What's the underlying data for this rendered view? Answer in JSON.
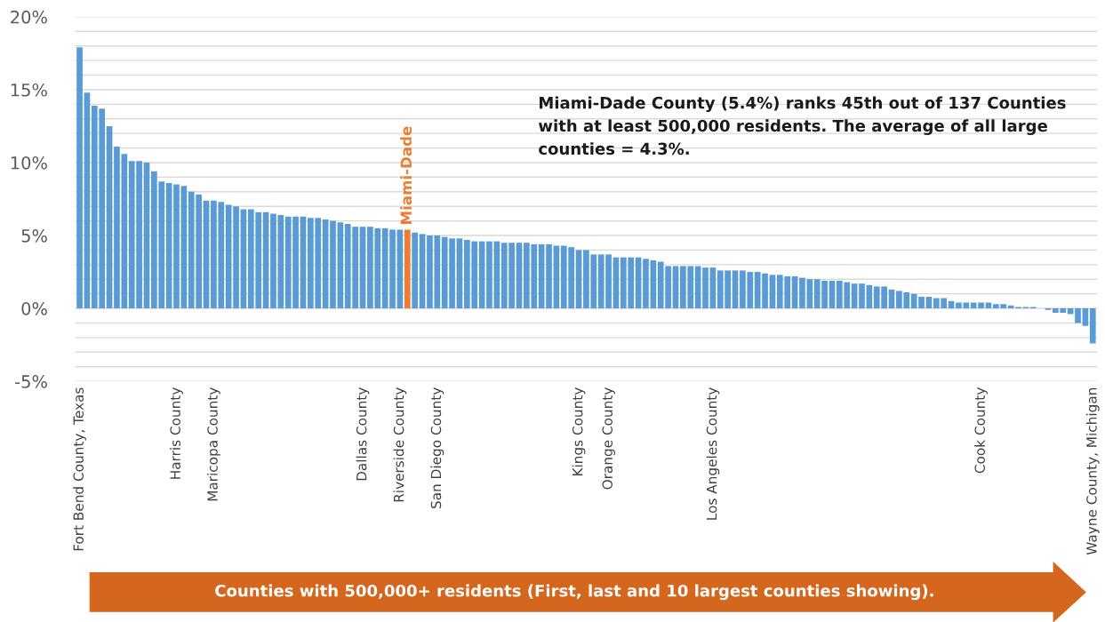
{
  "chart_data": {
    "type": "bar",
    "categories": [
      "Fort Bend County, Texas",
      null,
      null,
      null,
      null,
      null,
      null,
      null,
      null,
      null,
      null,
      null,
      null,
      "Harris County",
      null,
      null,
      null,
      null,
      "Maricopa County",
      null,
      null,
      null,
      null,
      null,
      null,
      null,
      null,
      null,
      null,
      null,
      null,
      null,
      null,
      null,
      null,
      null,
      null,
      null,
      "Dallas County",
      null,
      null,
      null,
      null,
      "Riverside County",
      "Miami-Dade",
      null,
      null,
      null,
      "San Diego County",
      null,
      null,
      null,
      null,
      null,
      null,
      null,
      null,
      null,
      null,
      null,
      null,
      null,
      null,
      null,
      null,
      null,
      null,
      "Kings County",
      null,
      null,
      null,
      "Orange County",
      null,
      null,
      null,
      null,
      null,
      null,
      null,
      null,
      null,
      null,
      null,
      null,
      null,
      "Los Angeles County",
      null,
      null,
      null,
      null,
      null,
      null,
      null,
      null,
      null,
      null,
      null,
      null,
      null,
      null,
      null,
      null,
      null,
      null,
      null,
      null,
      null,
      null,
      null,
      null,
      null,
      null,
      null,
      null,
      null,
      null,
      null,
      null,
      null,
      null,
      null,
      "Cook County",
      null,
      null,
      null,
      null,
      null,
      null,
      null,
      null,
      null,
      null,
      null,
      null,
      null,
      null,
      "Wayne County, Michigan"
    ],
    "values": [
      17.9,
      14.8,
      13.9,
      13.7,
      12.5,
      11.1,
      10.6,
      10.1,
      10.1,
      10.0,
      9.4,
      8.7,
      8.6,
      8.5,
      8.4,
      8.0,
      7.8,
      7.4,
      7.4,
      7.3,
      7.1,
      7.0,
      6.8,
      6.8,
      6.6,
      6.6,
      6.5,
      6.4,
      6.3,
      6.3,
      6.3,
      6.2,
      6.2,
      6.1,
      6.0,
      5.9,
      5.8,
      5.6,
      5.6,
      5.6,
      5.5,
      5.5,
      5.4,
      5.4,
      5.4,
      5.2,
      5.1,
      5.0,
      5.0,
      4.9,
      4.8,
      4.8,
      4.7,
      4.6,
      4.6,
      4.6,
      4.6,
      4.5,
      4.5,
      4.5,
      4.5,
      4.4,
      4.4,
      4.4,
      4.3,
      4.3,
      4.2,
      4.0,
      4.0,
      3.7,
      3.7,
      3.7,
      3.5,
      3.5,
      3.5,
      3.5,
      3.4,
      3.3,
      3.2,
      2.9,
      2.9,
      2.9,
      2.9,
      2.9,
      2.8,
      2.8,
      2.6,
      2.6,
      2.6,
      2.6,
      2.5,
      2.5,
      2.4,
      2.3,
      2.3,
      2.2,
      2.2,
      2.1,
      2.0,
      2.0,
      1.9,
      1.9,
      1.9,
      1.8,
      1.7,
      1.7,
      1.6,
      1.5,
      1.5,
      1.3,
      1.2,
      1.1,
      1.0,
      0.8,
      0.8,
      0.7,
      0.7,
      0.5,
      0.4,
      0.4,
      0.4,
      0.4,
      0.4,
      0.3,
      0.3,
      0.2,
      0.1,
      0.1,
      0.1,
      0.0,
      -0.1,
      -0.3,
      -0.3,
      -0.4,
      -1.0,
      -1.2,
      -2.4
    ],
    "colors": [
      "#5b9bd5",
      "#5b9bd5",
      "#5b9bd5",
      "#5b9bd5",
      "#5b9bd5",
      "#5b9bd5",
      "#5b9bd5",
      "#5b9bd5",
      "#5b9bd5",
      "#5b9bd5",
      "#5b9bd5",
      "#5b9bd5",
      "#5b9bd5",
      "#5b9bd5",
      "#5b9bd5",
      "#5b9bd5",
      "#5b9bd5",
      "#5b9bd5",
      "#5b9bd5",
      "#5b9bd5",
      "#5b9bd5",
      "#5b9bd5",
      "#5b9bd5",
      "#5b9bd5",
      "#5b9bd5",
      "#5b9bd5",
      "#5b9bd5",
      "#5b9bd5",
      "#5b9bd5",
      "#5b9bd5",
      "#5b9bd5",
      "#5b9bd5",
      "#5b9bd5",
      "#5b9bd5",
      "#5b9bd5",
      "#5b9bd5",
      "#5b9bd5",
      "#5b9bd5",
      "#5b9bd5",
      "#5b9bd5",
      "#5b9bd5",
      "#5b9bd5",
      "#5b9bd5",
      "#5b9bd5",
      "#ed7d31",
      "#5b9bd5",
      "#5b9bd5",
      "#5b9bd5",
      "#5b9bd5",
      "#5b9bd5",
      "#5b9bd5",
      "#5b9bd5",
      "#5b9bd5",
      "#5b9bd5",
      "#5b9bd5",
      "#5b9bd5",
      "#5b9bd5",
      "#5b9bd5",
      "#5b9bd5",
      "#5b9bd5",
      "#5b9bd5",
      "#5b9bd5",
      "#5b9bd5",
      "#5b9bd5",
      "#5b9bd5",
      "#5b9bd5",
      "#5b9bd5",
      "#5b9bd5",
      "#5b9bd5",
      "#5b9bd5",
      "#5b9bd5",
      "#5b9bd5",
      "#5b9bd5",
      "#5b9bd5",
      "#5b9bd5",
      "#5b9bd5",
      "#5b9bd5",
      "#5b9bd5",
      "#5b9bd5",
      "#5b9bd5",
      "#5b9bd5",
      "#5b9bd5",
      "#5b9bd5",
      "#5b9bd5",
      "#5b9bd5",
      "#5b9bd5",
      "#5b9bd5",
      "#5b9bd5",
      "#5b9bd5",
      "#5b9bd5",
      "#5b9bd5",
      "#5b9bd5",
      "#5b9bd5",
      "#5b9bd5",
      "#5b9bd5",
      "#5b9bd5",
      "#5b9bd5",
      "#5b9bd5",
      "#5b9bd5",
      "#5b9bd5",
      "#5b9bd5",
      "#5b9bd5",
      "#5b9bd5",
      "#5b9bd5",
      "#5b9bd5",
      "#5b9bd5",
      "#5b9bd5",
      "#5b9bd5",
      "#5b9bd5",
      "#5b9bd5",
      "#5b9bd5",
      "#5b9bd5",
      "#5b9bd5",
      "#5b9bd5",
      "#5b9bd5",
      "#5b9bd5",
      "#5b9bd5",
      "#5b9bd5",
      "#5b9bd5",
      "#5b9bd5",
      "#5b9bd5",
      "#5b9bd5",
      "#5b9bd5",
      "#5b9bd5",
      "#5b9bd5",
      "#5b9bd5",
      "#5b9bd5",
      "#5b9bd5",
      "#5b9bd5",
      "#5b9bd5",
      "#5b9bd5",
      "#5b9bd5",
      "#5b9bd5",
      "#5b9bd5",
      "#5b9bd5",
      "#5b9bd5",
      "#5b9bd5"
    ],
    "ylim": [
      -5,
      20
    ],
    "yticks": [
      {
        "value": -5,
        "label": "-5%"
      },
      {
        "value": -4,
        "label": null
      },
      {
        "value": -3,
        "label": null
      },
      {
        "value": -2,
        "label": null
      },
      {
        "value": -1,
        "label": null
      },
      {
        "value": 0,
        "label": "0%"
      },
      {
        "value": 1,
        "label": null
      },
      {
        "value": 2,
        "label": null
      },
      {
        "value": 3,
        "label": null
      },
      {
        "value": 4,
        "label": null
      },
      {
        "value": 5,
        "label": "5%"
      },
      {
        "value": 6,
        "label": null
      },
      {
        "value": 7,
        "label": null
      },
      {
        "value": 8,
        "label": null
      },
      {
        "value": 9,
        "label": null
      },
      {
        "value": 10,
        "label": "10%"
      },
      {
        "value": 11,
        "label": null
      },
      {
        "value": 12,
        "label": null
      },
      {
        "value": 13,
        "label": null
      },
      {
        "value": 14,
        "label": null
      },
      {
        "value": 15,
        "label": "15%"
      },
      {
        "value": 16,
        "label": null
      },
      {
        "value": 17,
        "label": null
      },
      {
        "value": 18,
        "label": null
      },
      {
        "value": 19,
        "label": null
      },
      {
        "value": 20,
        "label": "20%"
      }
    ],
    "grid": "y",
    "annotations": [
      "Miami-Dade County (5.4%) ranks 45th out of 137 Counties with at least 500,000 residents. The average of all large counties = 4.3%.",
      "Counties with 500,000+ residents (First, last and 10 largest counties showing)."
    ]
  }
}
